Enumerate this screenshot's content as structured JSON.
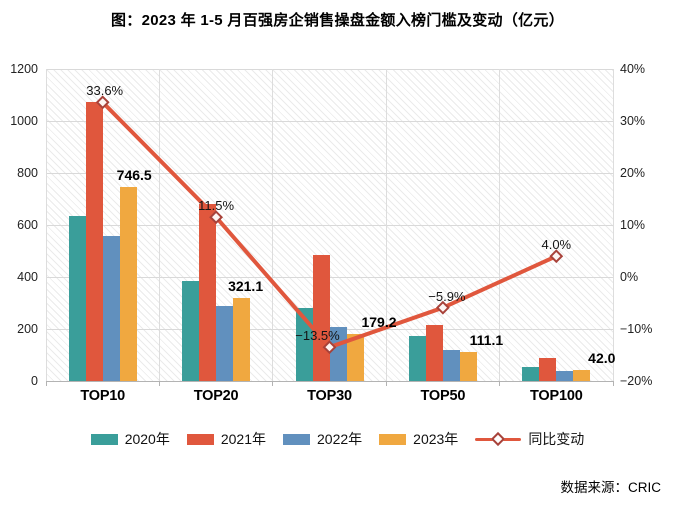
{
  "title": "图：2023 年 1-5 月百强房企销售操盘金额入榜门槛及变动（亿元）",
  "source_note": "数据来源：CRIC",
  "chart_data": {
    "type": "bar",
    "subtype": "grouped-bars-with-line",
    "title": "图：2023 年 1-5 月百强房企销售操盘金额入榜门槛及变动（亿元）",
    "categories": [
      "TOP10",
      "TOP20",
      "TOP30",
      "TOP50",
      "TOP100"
    ],
    "series": [
      {
        "name": "2020年",
        "type": "bar",
        "axis": "left",
        "color": "#3A9E9A",
        "values": [
          635,
          385,
          280,
          175,
          52
        ]
      },
      {
        "name": "2021年",
        "type": "bar",
        "axis": "left",
        "color": "#E0573D",
        "values": [
          1075,
          680,
          485,
          215,
          90
        ]
      },
      {
        "name": "2022年",
        "type": "bar",
        "axis": "left",
        "color": "#6190BE",
        "values": [
          559,
          288,
          207,
          118,
          40
        ]
      },
      {
        "name": "2023年",
        "type": "bar",
        "axis": "left",
        "color": "#F0A840",
        "values": [
          746.5,
          321.1,
          179.2,
          111.1,
          42.0
        ],
        "data_labels": [
          "746.5",
          "321.1",
          "179.2",
          "111.1",
          "42.0"
        ]
      },
      {
        "name": "同比变动",
        "type": "line",
        "axis": "right",
        "color": "#E0573D",
        "marker": "diamond",
        "marker_fill": "#fdf4f2",
        "marker_stroke": "#A8423A",
        "values": [
          33.6,
          11.5,
          -13.5,
          -5.9,
          4.0
        ],
        "data_labels": [
          "33.6%",
          "11.5%",
          "−13.5%",
          "−5.9%",
          "4.0%"
        ]
      }
    ],
    "left_axis": {
      "min": 0,
      "max": 1200,
      "ticks": [
        "1200",
        "1000",
        "800",
        "600",
        "400",
        "200",
        "0"
      ]
    },
    "right_axis": {
      "min": -20,
      "max": 40,
      "ticks": [
        "40%",
        "30%",
        "20%",
        "10%",
        "0%",
        "−10%",
        "−20%"
      ]
    },
    "legend_position": "bottom",
    "grid": true,
    "plot_background": "diagonal-hatch",
    "style": {
      "gridline_color": "#d9d9d9",
      "axis_line_color": "#b3b3b3",
      "hatch_color": "#ebebeb",
      "label_color": "#000000"
    }
  }
}
